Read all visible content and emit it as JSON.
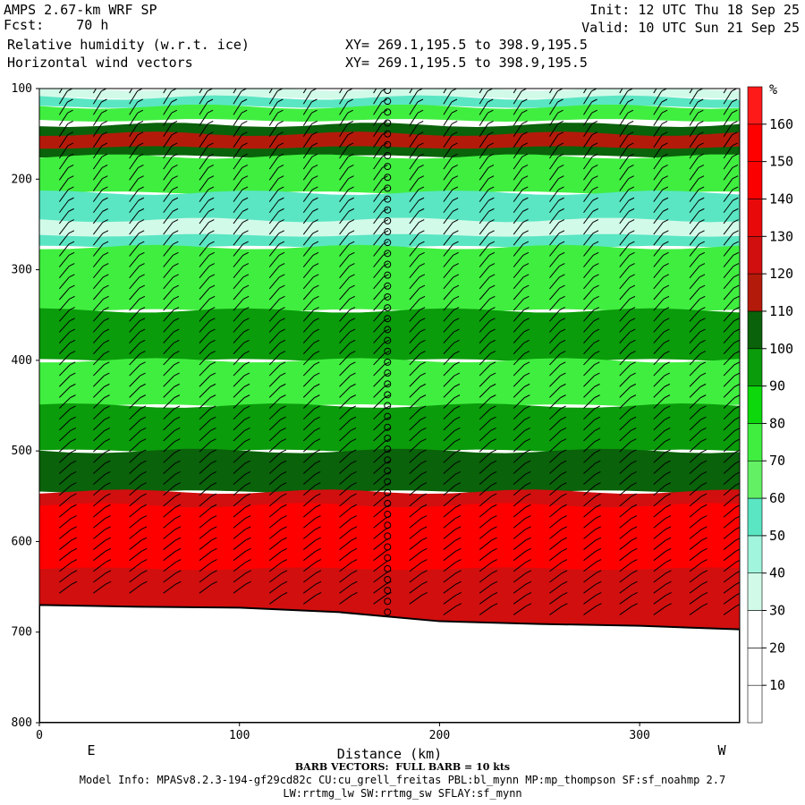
{
  "header": {
    "title": "AMPS 2.67-km WRF SP",
    "forecast": "Fcst:    70 h",
    "field": "Relative humidity (w.r.t. ice)",
    "vectors": "Horizontal wind vectors",
    "init": "Init: 12 UTC Thu 18 Sep 25",
    "valid": "Valid: 10 UTC Sun 21 Sep 25",
    "xy_line1": "XY= 269.1,195.5 to 398.9,195.5",
    "xy_line2": "XY= 269.1,195.5 to 398.9,195.5"
  },
  "footer": {
    "barb_note": "BARB VECTORS:  FULL BARB = 10 kts",
    "model_info": "Model Info: MPASv8.2.3-194-gf29cd82c CU:cu_grell_freitas PBL:bl_mynn MP:mp_thompson SF:sf_noahmp 2.7",
    "model_info2": "LW:rrtmg_lw SW:rrtmg_sw SFLAY:sf_mynn"
  },
  "chart_data": {
    "type": "heatmap",
    "title": "Relative humidity (w.r.t. ice)",
    "xlabel": "Distance (km)",
    "ylabel": "",
    "xlim": [
      0,
      350
    ],
    "ylim": [
      800,
      100
    ],
    "x_ticks": [
      0,
      100,
      200,
      300
    ],
    "y_ticks": [
      100,
      200,
      300,
      400,
      500,
      600,
      700,
      800
    ],
    "x_end_labels": {
      "left": "E",
      "right": "W"
    },
    "colorbar": {
      "unit": "%",
      "levels": [
        10,
        20,
        30,
        40,
        50,
        60,
        70,
        80,
        90,
        100,
        110,
        120,
        130,
        140,
        150,
        160
      ],
      "colors": [
        "#ffffff",
        "#ffffff",
        "#ffffff",
        "#d2fae9",
        "#a0f5dc",
        "#5ae6c3",
        "#64f064",
        "#40ee40",
        "#0cd80c",
        "#0a9c0a",
        "#0a620a",
        "#b41a0a",
        "#d10f0f",
        "#e80a0a",
        "#fa0000",
        "#ff0000",
        "#ff1a1a"
      ]
    },
    "terrain_surface": [
      [
        0,
        670
      ],
      [
        50,
        672
      ],
      [
        100,
        673
      ],
      [
        150,
        678
      ],
      [
        200,
        688
      ],
      [
        250,
        691
      ],
      [
        300,
        693
      ],
      [
        350,
        697
      ]
    ],
    "layers": [
      {
        "name": "top_light",
        "color": "#d2fae9",
        "p_top": 100,
        "p_bot": 110
      },
      {
        "name": "uppermost_band_1",
        "color": "#5ae6c3",
        "p_top": 110,
        "p_bot": 120
      },
      {
        "name": "uppermost_band_2",
        "color": "#40ee40",
        "p_top": 120,
        "p_bot": 135
      },
      {
        "name": "dark_band",
        "color": "#0a620a",
        "p_top": 140,
        "p_bot": 175
      },
      {
        "name": "red_streak",
        "color": "#b41a0a",
        "p_top": 150,
        "p_bot": 165
      },
      {
        "name": "moist_upper",
        "color": "#40ee40",
        "p_top": 175,
        "p_bot": 215
      },
      {
        "name": "dry_layer",
        "color": "#5ae6c3",
        "p_top": 215,
        "p_bot": 275
      },
      {
        "name": "very_dry_pocket",
        "color": "#d2fae9",
        "p_top": 245,
        "p_bot": 262
      },
      {
        "name": "mid_green",
        "color": "#40ee40",
        "p_top": 275,
        "p_bot": 345
      },
      {
        "name": "mid_dark",
        "color": "#0a9c0a",
        "p_top": 345,
        "p_bot": 400
      },
      {
        "name": "mid_green_2",
        "color": "#40ee40",
        "p_top": 400,
        "p_bot": 450
      },
      {
        "name": "lower_dark",
        "color": "#0a9c0a",
        "p_top": 450,
        "p_bot": 500
      },
      {
        "name": "lower_darkest",
        "color": "#0a620a",
        "p_top": 500,
        "p_bot": 545
      },
      {
        "name": "near_surface_red",
        "color": "#d10f0f",
        "p_top": 545,
        "p_bot": 700
      },
      {
        "name": "near_surface_bright_red",
        "color": "#ff0000",
        "p_top": 560,
        "p_bot": 630
      }
    ],
    "wind_barb_columns_km": [
      10,
      27,
      45,
      62,
      80,
      97,
      115,
      132,
      150,
      167,
      185,
      202,
      220,
      237,
      255,
      272,
      290,
      307,
      325,
      342
    ],
    "calm_column_km": 174
  }
}
